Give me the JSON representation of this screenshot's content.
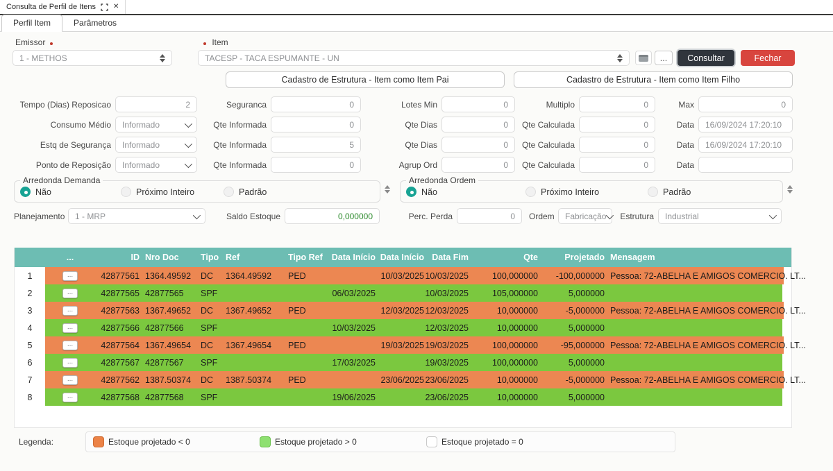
{
  "window": {
    "title": "Consulta de Perfil de Itens"
  },
  "tabs": [
    {
      "label": "Perfil Item",
      "active": true
    },
    {
      "label": "Parâmetros",
      "active": false
    }
  ],
  "top": {
    "emissor": {
      "label": "Emissor",
      "value": "1 - METHOS"
    },
    "item": {
      "label": "Item",
      "value": "TACESP - TACA ESPUMANTE - UN"
    },
    "dots_button": "...",
    "consultar": "Consultar",
    "fechar": "Fechar",
    "estrutura_pai": "Cadastro de Estrutura - Item como Item Pai",
    "estrutura_filho": "Cadastro de Estrutura - Item como Item Filho"
  },
  "form": {
    "rows": [
      [
        {
          "label": "Tempo (Dias) Reposicao",
          "value": "2",
          "type": "input"
        },
        {
          "label": "Seguranca",
          "value": "0",
          "type": "input"
        },
        {
          "label": "Lotes Min",
          "value": "0",
          "type": "input"
        },
        {
          "label": "Multiplo",
          "value": "0",
          "type": "input"
        },
        {
          "label": "Max",
          "value": "0",
          "type": "input"
        }
      ],
      [
        {
          "label": "Consumo Médio",
          "value": "Informado",
          "type": "select"
        },
        {
          "label": "Qte Informada",
          "value": "0",
          "type": "input"
        },
        {
          "label": "Qte Dias",
          "value": "0",
          "type": "input"
        },
        {
          "label": "Qte Calculada",
          "value": "0",
          "type": "input"
        },
        {
          "label": "Data",
          "value": "16/09/2024 17:20:10",
          "type": "input",
          "align": "left"
        }
      ],
      [
        {
          "label": "Estq de Segurança",
          "value": "Informado",
          "type": "select"
        },
        {
          "label": "Qte Informada",
          "value": "5",
          "type": "input"
        },
        {
          "label": "Qte Dias",
          "value": "0",
          "type": "input"
        },
        {
          "label": "Qte Calculada",
          "value": "0",
          "type": "input"
        },
        {
          "label": "Data",
          "value": "16/09/2024 17:20:10",
          "type": "input",
          "align": "left"
        }
      ],
      [
        {
          "label": "Ponto de Reposição",
          "value": "Informado",
          "type": "select"
        },
        {
          "label": "Qte Informada",
          "value": "0",
          "type": "input"
        },
        {
          "label": "Agrup Ord",
          "value": "0",
          "type": "input"
        },
        {
          "label": "Qte Calculada",
          "value": "0",
          "type": "input"
        },
        {
          "label": "Data",
          "value": "",
          "type": "input",
          "align": "left"
        }
      ]
    ]
  },
  "arredonda_demanda": {
    "legend": "Arredonda Demanda",
    "options": [
      "Não",
      "Próximo Inteiro",
      "Padrão"
    ],
    "selected": 0
  },
  "arredonda_ordem": {
    "legend": "Arredonda Ordem",
    "options": [
      "Não",
      "Próximo Inteiro",
      "Padrão"
    ],
    "selected": 0
  },
  "plan_row": [
    {
      "label": "Planejamento",
      "value": "1 - MRP",
      "type": "select",
      "labelW": 78,
      "fieldW": 198
    },
    {
      "label": "Saldo Estoque",
      "value": "0,000000",
      "type": "input",
      "green": true,
      "labelW": 100,
      "fieldW": 137,
      "gap": 14
    },
    {
      "label": "Perc. Perda",
      "value": "0",
      "type": "input",
      "labelW": 85,
      "fieldW": 94,
      "gap": 26
    },
    {
      "label": "Ordem",
      "value": "Fabricação",
      "type": "select",
      "labelW": 42,
      "fieldW": 78,
      "gap": 10
    },
    {
      "label": "Estrutura",
      "value": "Industrial",
      "type": "select",
      "labelW": 58,
      "fieldW": 178,
      "gap": 8
    }
  ],
  "table": {
    "headers": [
      "...",
      "ID",
      "Nro Doc",
      "Tipo",
      "Ref",
      "Tipo Ref",
      "Data Início",
      "Data Início",
      "Data Fim",
      "Qte",
      "Projetado",
      "Mensagem"
    ],
    "rows": [
      {
        "n": "1",
        "status": "negative",
        "id": "42877561",
        "nro": "1364.49592",
        "tipo": "DC",
        "ref": "1364.49592",
        "tiporef": "PED",
        "di1": "",
        "di2": "10/03/2025",
        "df": "10/03/2025",
        "qte": "100,000000",
        "proj": "-100,000000",
        "msg": "Pessoa: 72-ABELHA E AMIGOS COMERCIO. LT..."
      },
      {
        "n": "2",
        "status": "positive",
        "id": "42877565",
        "nro": "42877565",
        "tipo": "SPF",
        "ref": "",
        "tiporef": "",
        "di1": "06/03/2025",
        "di2": "",
        "df": "10/03/2025",
        "qte": "105,000000",
        "proj": "5,000000",
        "msg": ""
      },
      {
        "n": "3",
        "status": "negative",
        "id": "42877563",
        "nro": "1367.49652",
        "tipo": "DC",
        "ref": "1367.49652",
        "tiporef": "PED",
        "di1": "",
        "di2": "12/03/2025",
        "df": "12/03/2025",
        "qte": "10,000000",
        "proj": "-5,000000",
        "msg": "Pessoa: 72-ABELHA E AMIGOS COMERCIO. LT..."
      },
      {
        "n": "4",
        "status": "positive",
        "id": "42877566",
        "nro": "42877566",
        "tipo": "SPF",
        "ref": "",
        "tiporef": "",
        "di1": "10/03/2025",
        "di2": "",
        "df": "12/03/2025",
        "qte": "10,000000",
        "proj": "5,000000",
        "msg": ""
      },
      {
        "n": "5",
        "status": "negative",
        "id": "42877564",
        "nro": "1367.49654",
        "tipo": "DC",
        "ref": "1367.49654",
        "tiporef": "PED",
        "di1": "",
        "di2": "19/03/2025",
        "df": "19/03/2025",
        "qte": "100,000000",
        "proj": "-95,000000",
        "msg": "Pessoa: 72-ABELHA E AMIGOS COMERCIO. LT..."
      },
      {
        "n": "6",
        "status": "positive",
        "id": "42877567",
        "nro": "42877567",
        "tipo": "SPF",
        "ref": "",
        "tiporef": "",
        "di1": "17/03/2025",
        "di2": "",
        "df": "19/03/2025",
        "qte": "100,000000",
        "proj": "5,000000",
        "msg": ""
      },
      {
        "n": "7",
        "status": "negative",
        "id": "42877562",
        "nro": "1387.50374",
        "tipo": "DC",
        "ref": "1387.50374",
        "tiporef": "PED",
        "di1": "",
        "di2": "23/06/2025",
        "df": "23/06/2025",
        "qte": "10,000000",
        "proj": "-5,000000",
        "msg": "Pessoa: 72-ABELHA E AMIGOS COMERCIO. LT..."
      },
      {
        "n": "8",
        "status": "positive",
        "id": "42877568",
        "nro": "42877568",
        "tipo": "SPF",
        "ref": "",
        "tiporef": "",
        "di1": "19/06/2025",
        "di2": "",
        "df": "23/06/2025",
        "qte": "10,000000",
        "proj": "5,000000",
        "msg": ""
      }
    ]
  },
  "legend": {
    "label": "Legenda:",
    "items": [
      {
        "text": "Estoque projetado < 0",
        "color": "#ec8347",
        "border": "#cf6c33"
      },
      {
        "text": "Estoque projetado > 0",
        "color": "#8ee070",
        "border": "#6dc24f"
      },
      {
        "text": "Estoque projetado = 0",
        "color": "#ffffff",
        "border": "#c9c9c9"
      }
    ]
  },
  "colors": {
    "header_teal": "#6dbdb3",
    "row_negative": "#ec8752",
    "row_positive": "#7bc83f",
    "accent_teal_radio": "#18a394",
    "consultar_bg": "#30353c",
    "fechar_bg": "#d8453e",
    "saldo_green": "#2e8b2e"
  }
}
